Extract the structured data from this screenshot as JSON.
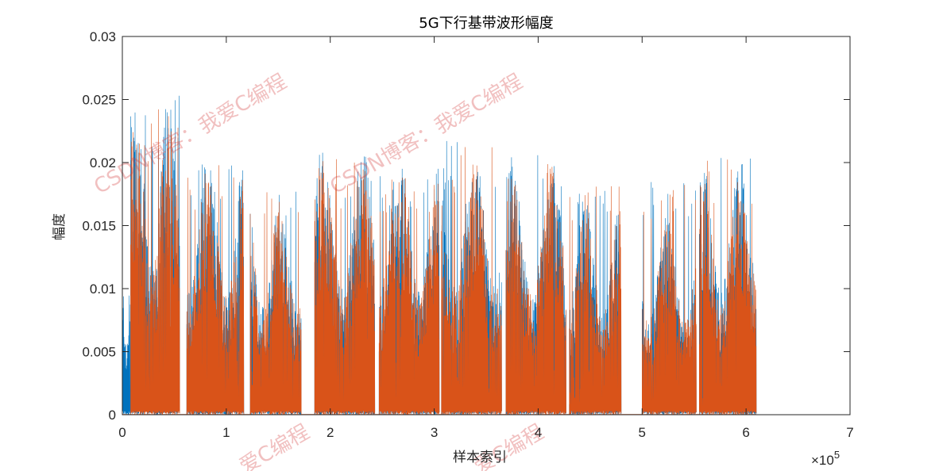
{
  "chart_data": {
    "type": "line",
    "title": "5G下行基带波形幅度",
    "xlabel": "样本索引",
    "ylabel": "幅度",
    "x_exponent_label": "×10",
    "x_exponent_power": "5",
    "xlim": [
      0,
      7
    ],
    "ylim": [
      0,
      0.03
    ],
    "x_ticks": [
      0,
      1,
      2,
      3,
      4,
      5,
      6,
      7
    ],
    "x_tick_labels": [
      "0",
      "1",
      "2",
      "3",
      "4",
      "5",
      "6",
      "7"
    ],
    "y_ticks": [
      0,
      0.005,
      0.01,
      0.015,
      0.02,
      0.025,
      0.03
    ],
    "y_tick_labels": [
      "0",
      "0.005",
      "0.01",
      "0.015",
      "0.02",
      "0.025",
      "0.03"
    ],
    "grid": false,
    "series": [
      {
        "color": "#0072BD"
      },
      {
        "color": "#D95319"
      }
    ],
    "segments": [
      {
        "x_start": 0.0,
        "x_end": 0.08,
        "peak": 0.0105,
        "level": 0.008,
        "blue_only": true
      },
      {
        "x_start": 0.08,
        "x_end": 0.55,
        "peak": 0.0255,
        "level": 0.019
      },
      {
        "x_start": 0.62,
        "x_end": 1.17,
        "peak": 0.0205,
        "level": 0.0155
      },
      {
        "x_start": 1.23,
        "x_end": 1.72,
        "peak": 0.0185,
        "level": 0.0135
      },
      {
        "x_start": 1.85,
        "x_end": 2.43,
        "peak": 0.021,
        "level": 0.016
      },
      {
        "x_start": 2.47,
        "x_end": 3.05,
        "peak": 0.0195,
        "level": 0.0155
      },
      {
        "x_start": 3.07,
        "x_end": 3.65,
        "peak": 0.022,
        "level": 0.016
      },
      {
        "x_start": 3.69,
        "x_end": 4.27,
        "peak": 0.021,
        "level": 0.0155
      },
      {
        "x_start": 4.3,
        "x_end": 4.8,
        "peak": 0.019,
        "level": 0.013
      },
      {
        "x_start": 5.0,
        "x_end": 5.52,
        "peak": 0.019,
        "level": 0.012
      },
      {
        "x_start": 5.55,
        "x_end": 6.1,
        "peak": 0.021,
        "level": 0.0155
      }
    ]
  },
  "watermarks": {
    "full_text": "CSDN博客：我爱C编程",
    "partial_text": "爱C编程"
  }
}
